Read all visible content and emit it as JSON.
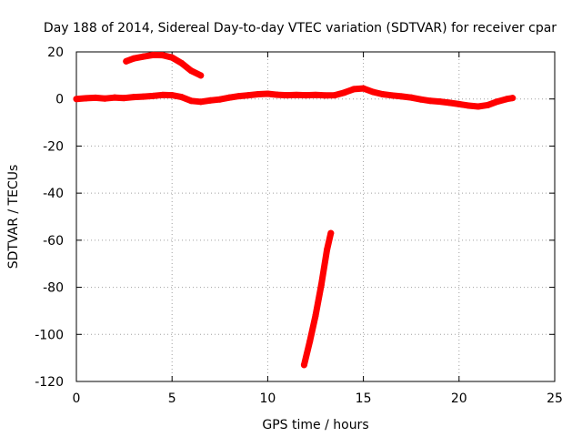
{
  "chart_data": {
    "type": "scatter",
    "title": "Day 188 of 2014, Sidereal Day-to-day VTEC variation (SDTVAR) for receiver cpar",
    "xlabel": "GPS time / hours",
    "ylabel": "SDTVAR / TECUs",
    "xlim": [
      0,
      25
    ],
    "ylim": [
      -120,
      20
    ],
    "xticks": [
      0,
      5,
      10,
      15,
      20,
      25
    ],
    "yticks": [
      -120,
      -100,
      -80,
      -60,
      -40,
      -20,
      0,
      20
    ],
    "grid": true,
    "legend": "none",
    "marker_color": "#ff0000",
    "series": [
      {
        "name": "main",
        "points": [
          [
            0,
            0
          ],
          [
            0.5,
            0.3
          ],
          [
            1,
            0.5
          ],
          [
            1.5,
            0.2
          ],
          [
            2,
            0.6
          ],
          [
            2.5,
            0.4
          ],
          [
            3,
            0.8
          ],
          [
            3.5,
            1
          ],
          [
            4,
            1.3
          ],
          [
            4.5,
            1.7
          ],
          [
            5,
            1.6
          ],
          [
            5.5,
            0.8
          ],
          [
            6,
            -0.8
          ],
          [
            6.5,
            -1.2
          ],
          [
            7,
            -0.6
          ],
          [
            7.5,
            -0.2
          ],
          [
            8,
            0.6
          ],
          [
            8.5,
            1.2
          ],
          [
            9,
            1.6
          ],
          [
            9.5,
            2
          ],
          [
            10,
            2.2
          ],
          [
            10.5,
            1.8
          ],
          [
            11,
            1.6
          ],
          [
            11.5,
            1.7
          ],
          [
            12,
            1.6
          ],
          [
            12.5,
            1.7
          ],
          [
            13,
            1.5
          ],
          [
            13.5,
            1.6
          ],
          [
            14,
            2.7
          ],
          [
            14.5,
            4.2
          ],
          [
            15,
            4.5
          ],
          [
            15.5,
            3
          ],
          [
            16,
            2
          ],
          [
            16.5,
            1.5
          ],
          [
            17,
            1.1
          ],
          [
            17.5,
            0.6
          ],
          [
            18,
            -0.2
          ],
          [
            18.5,
            -0.8
          ],
          [
            19,
            -1.1
          ],
          [
            19.5,
            -1.6
          ],
          [
            20,
            -2.2
          ],
          [
            20.5,
            -2.8
          ],
          [
            21,
            -3.2
          ],
          [
            21.5,
            -2.6
          ],
          [
            22,
            -1.1
          ],
          [
            22.5,
            0
          ],
          [
            22.8,
            0.4
          ]
        ]
      },
      {
        "name": "arc",
        "points": [
          [
            2.6,
            16
          ],
          [
            3,
            17.2
          ],
          [
            3.5,
            18
          ],
          [
            4,
            18.7
          ],
          [
            4.5,
            18.6
          ],
          [
            5,
            17.6
          ],
          [
            5.5,
            15.2
          ],
          [
            6,
            12
          ],
          [
            6.5,
            10
          ]
        ]
      },
      {
        "name": "descent",
        "points": [
          [
            11.9,
            -113
          ],
          [
            12.2,
            -103
          ],
          [
            12.5,
            -92
          ],
          [
            12.8,
            -79
          ],
          [
            13.1,
            -64
          ],
          [
            13.3,
            -57
          ]
        ]
      }
    ]
  }
}
